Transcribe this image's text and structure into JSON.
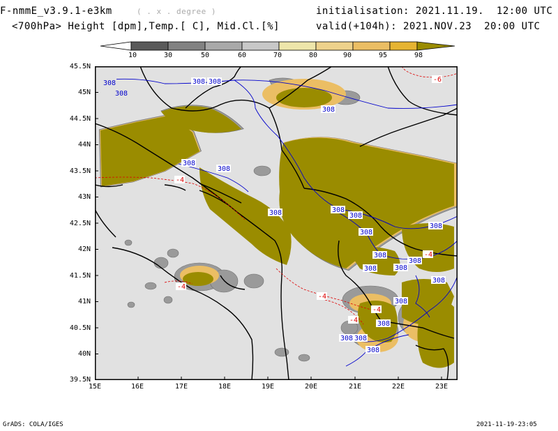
{
  "header": {
    "model": "F-nmmE_v3.9.1-e3km",
    "resolution": "( . x . degree )",
    "init": "initialisation: 2021.11.19.  12:00 UTC",
    "field": "<700hPa> Height [dpm],Temp.[ C], Mid.Cl.[%]",
    "valid": "valid(+104h): 2021.NOV.23  20:00 UTC"
  },
  "colorbar": {
    "labels": [
      "10",
      "30",
      "50",
      "60",
      "70",
      "80",
      "90",
      "95",
      "98"
    ],
    "colors": [
      "#ffffff",
      "#5a5a5a",
      "#828282",
      "#a9a9a9",
      "#c8c8c8",
      "#eee6aa",
      "#eed28c",
      "#ebbe64",
      "#e6b432",
      "#9a8c00"
    ]
  },
  "axes": {
    "lat_labels": [
      "45.5N",
      "45N",
      "44.5N",
      "44N",
      "43.5N",
      "43N",
      "42.5N",
      "42N",
      "41.5N",
      "41N",
      "40.5N",
      "40N",
      "39.5N"
    ],
    "lon_labels": [
      "15E",
      "16E",
      "17E",
      "18E",
      "19E",
      "20E",
      "21E",
      "22E",
      "23E"
    ]
  },
  "contours": {
    "height_labels": [
      "308",
      "308",
      "308",
      "308",
      "308",
      "308",
      "308",
      "308",
      "308",
      "308",
      "308",
      "308",
      "308",
      "308",
      "308",
      "308",
      "308",
      "308",
      "308",
      "308",
      "308",
      "308"
    ],
    "temp_labels": [
      "-4",
      "-4",
      "-4",
      "-4",
      "-4",
      "-4",
      "-6"
    ]
  },
  "map_colors": {
    "background": "#e1e1e1",
    "cloud_high": "#9a8c00",
    "height_contour": "#0000cc",
    "temp_contour": "#dd0000",
    "border": "#000000"
  },
  "footer": {
    "left": "GrADS: COLA/IGES",
    "right": "2021-11-19-23:05"
  }
}
